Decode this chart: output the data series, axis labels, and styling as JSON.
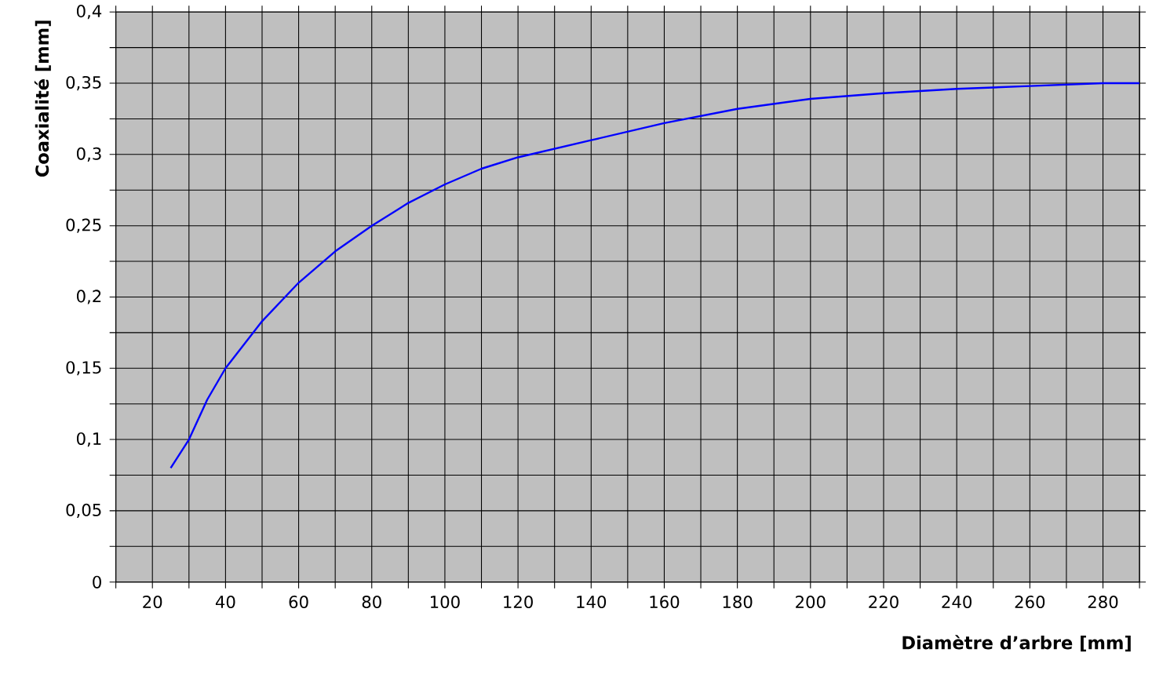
{
  "chart_data": {
    "type": "line",
    "xlabel": "Diamètre d’arbre [mm]",
    "ylabel": "Coaxialité [mm]",
    "xlim": [
      10,
      290
    ],
    "xticks": [
      {
        "value": 10,
        "label": null
      },
      20,
      {
        "value": 30,
        "label": null
      },
      40,
      {
        "value": 50,
        "label": null
      },
      60,
      {
        "value": 70,
        "label": null
      },
      80,
      {
        "value": 90,
        "label": null
      },
      100,
      {
        "value": 110,
        "label": null
      },
      120,
      {
        "value": 130,
        "label": null
      },
      140,
      {
        "value": 150,
        "label": null
      },
      160,
      {
        "value": 170,
        "label": null
      },
      180,
      {
        "value": 190,
        "label": null
      },
      200,
      {
        "value": 210,
        "label": null
      },
      220,
      {
        "value": 230,
        "label": null
      },
      240,
      {
        "value": 250,
        "label": null
      },
      260,
      {
        "value": 270,
        "label": null
      },
      280,
      {
        "value": 290,
        "label": null
      }
    ],
    "ylim": [
      0,
      0.4
    ],
    "yticks": [
      0,
      {
        "value": 0.025,
        "label": null
      },
      {
        "value": 0.05,
        "label": "0,05"
      },
      {
        "value": 0.075,
        "label": null
      },
      {
        "value": 0.1,
        "label": "0,1"
      },
      {
        "value": 0.125,
        "label": null
      },
      {
        "value": 0.15,
        "label": "0,15"
      },
      {
        "value": 0.175,
        "label": null
      },
      {
        "value": 0.2,
        "label": "0,2"
      },
      {
        "value": 0.225,
        "label": null
      },
      {
        "value": 0.25,
        "label": "0,25"
      },
      {
        "value": 0.275,
        "label": null
      },
      {
        "value": 0.3,
        "label": "0,3"
      },
      {
        "value": 0.325,
        "label": null
      },
      {
        "value": 0.35,
        "label": "0,35"
      },
      {
        "value": 0.375,
        "label": null
      },
      {
        "value": 0.4,
        "label": "0,4"
      }
    ],
    "grid": true,
    "series": [
      {
        "color": "#0000ff",
        "x": [
          25,
          30,
          35,
          40,
          50,
          60,
          70,
          80,
          90,
          100,
          110,
          120,
          140,
          160,
          180,
          200,
          220,
          240,
          260,
          280,
          290
        ],
        "values": [
          0.08,
          0.1,
          0.128,
          0.15,
          0.183,
          0.21,
          0.232,
          0.25,
          0.266,
          0.279,
          0.29,
          0.298,
          0.31,
          0.322,
          0.332,
          0.339,
          0.343,
          0.346,
          0.348,
          0.35,
          0.35
        ]
      }
    ]
  }
}
